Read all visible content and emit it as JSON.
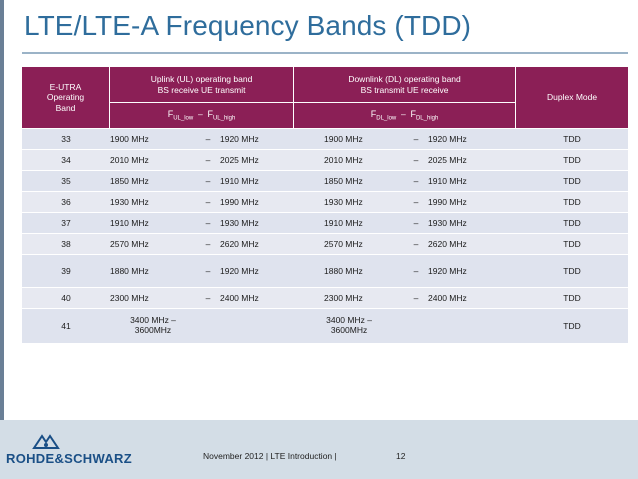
{
  "title": "LTE/LTE-A Frequency Bands (TDD)",
  "header": {
    "band_col": [
      "E-UTRA",
      "Operating",
      "Band"
    ],
    "uplink": [
      "Uplink (UL) operating band",
      "BS receive UE transmit"
    ],
    "downlink": [
      "Downlink (DL) operating band",
      "BS transmit UE receive"
    ],
    "duplex": "Duplex Mode",
    "ul_range": {
      "f": "F",
      "low_sub": "UL_low",
      "dash": "–",
      "high_sub": "UL_high"
    },
    "dl_range": {
      "f": "F",
      "low_sub": "DL_low",
      "dash": "–",
      "high_sub": "DL_high"
    }
  },
  "rows": [
    {
      "band": "33",
      "ul_low": "1900 MHz",
      "ul_dash": "–",
      "ul_high": "1920 MHz",
      "dl_low": "1900 MHz",
      "dl_dash": "–",
      "dl_high": "1920 MHz",
      "duplex": "TDD"
    },
    {
      "band": "34",
      "ul_low": "2010 MHz",
      "ul_dash": "–",
      "ul_high": "2025 MHz",
      "dl_low": "2010 MHz",
      "dl_dash": "–",
      "dl_high": "2025 MHz",
      "duplex": "TDD"
    },
    {
      "band": "35",
      "ul_low": "1850 MHz",
      "ul_dash": "–",
      "ul_high": "1910 MHz",
      "dl_low": "1850 MHz",
      "dl_dash": "–",
      "dl_high": "1910 MHz",
      "duplex": "TDD"
    },
    {
      "band": "36",
      "ul_low": "1930 MHz",
      "ul_dash": "–",
      "ul_high": "1990 MHz",
      "dl_low": "1930 MHz",
      "dl_dash": "–",
      "dl_high": "1990 MHz",
      "duplex": "TDD"
    },
    {
      "band": "37",
      "ul_low": "1910 MHz",
      "ul_dash": "–",
      "ul_high": "1930 MHz",
      "dl_low": "1910 MHz",
      "dl_dash": "–",
      "dl_high": "1930 MHz",
      "duplex": "TDD"
    },
    {
      "band": "38",
      "ul_low": "2570 MHz",
      "ul_dash": "–",
      "ul_high": "2620 MHz",
      "dl_low": "2570 MHz",
      "dl_dash": "–",
      "dl_high": "2620 MHz",
      "duplex": "TDD"
    },
    {
      "band": "39",
      "ul_low": "1880 MHz",
      "ul_dash": "–",
      "ul_high": "1920 MHz",
      "dl_low": "1880 MHz",
      "dl_dash": "–",
      "dl_high": "1920 MHz",
      "duplex": "TDD"
    },
    {
      "band": "40",
      "ul_low": "2300 MHz",
      "ul_dash": "–",
      "ul_high": "2400 MHz",
      "dl_low": "2300 MHz",
      "dl_dash": "–",
      "dl_high": "2400 MHz",
      "duplex": "TDD"
    }
  ],
  "band41": {
    "band": "41",
    "ul_line1": "3400 MHz –",
    "ul_line2": "3600MHz",
    "dl_line1": "3400 MHz –",
    "dl_line2": "3600MHz",
    "duplex": "TDD"
  },
  "footer": {
    "logo_text": "ROHDE&SCHWARZ",
    "text": "November 2012 | LTE Introduction  |",
    "page": "12"
  },
  "colors": {
    "header_bg": "#8b1f56",
    "row_bg": "#e7e9f1",
    "title": "#2f6d9c",
    "logo": "#1a4f86",
    "footer_bg": "#d3dde6"
  },
  "icons": [
    "rohde-schwarz-logo-mark"
  ]
}
